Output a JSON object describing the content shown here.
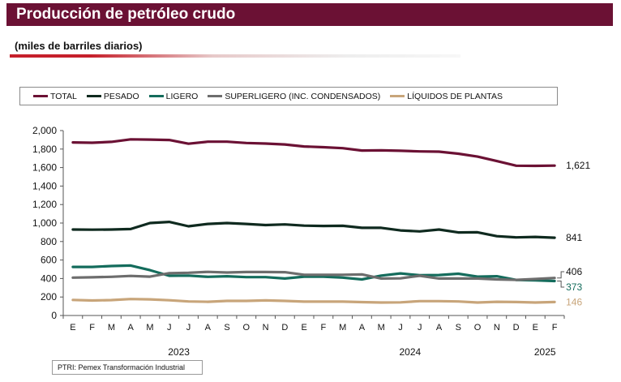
{
  "title": "Producción de petróleo crudo",
  "subtitle": "(miles de barriles diarios)",
  "source": "PTRI: Pemex Transformación Industrial",
  "chart_data": {
    "type": "line",
    "x": [
      "E",
      "F",
      "M",
      "A",
      "M",
      "J",
      "J",
      "A",
      "S",
      "O",
      "N",
      "D",
      "E",
      "F",
      "M",
      "A",
      "M",
      "J",
      "J",
      "A",
      "S",
      "O",
      "N",
      "D",
      "E",
      "F"
    ],
    "year_labels": [
      {
        "label": "2023",
        "start_index": 0,
        "end_index": 11
      },
      {
        "label": "2024",
        "start_index": 12,
        "end_index": 23
      },
      {
        "label": "2025",
        "start_index": 24,
        "end_index": 25
      }
    ],
    "ylim": [
      0,
      2000
    ],
    "yticks": [
      "0",
      "200",
      "400",
      "600",
      "800",
      "1,000",
      "1,200",
      "1,400",
      "1,600",
      "1,800",
      "2,000"
    ],
    "ytick_values": [
      0,
      200,
      400,
      600,
      800,
      1000,
      1200,
      1400,
      1600,
      1800,
      2000
    ],
    "grid": false,
    "legend_position": "top",
    "series": [
      {
        "name": "TOTAL",
        "color": "#6b1134",
        "end_label": "1,621",
        "values": [
          1872,
          1868,
          1878,
          1905,
          1903,
          1898,
          1858,
          1880,
          1880,
          1866,
          1860,
          1850,
          1828,
          1820,
          1810,
          1784,
          1786,
          1782,
          1775,
          1772,
          1750,
          1718,
          1670,
          1620,
          1618,
          1621
        ]
      },
      {
        "name": "PESADO",
        "color": "#0f2a1f",
        "end_label": "841",
        "values": [
          930,
          928,
          930,
          935,
          1000,
          1012,
          965,
          990,
          1000,
          990,
          978,
          985,
          972,
          968,
          970,
          948,
          948,
          920,
          910,
          930,
          898,
          900,
          858,
          845,
          850,
          841
        ]
      },
      {
        "name": "LIGERO",
        "color": "#146c5c",
        "end_label": "373",
        "values": [
          525,
          525,
          535,
          540,
          490,
          430,
          432,
          418,
          425,
          415,
          415,
          400,
          420,
          420,
          410,
          390,
          432,
          455,
          435,
          438,
          452,
          420,
          425,
          385,
          380,
          373
        ]
      },
      {
        "name": "SUPERLIGERO (INC. CONDENSADOS)",
        "color": "#6d6d6d",
        "end_label": "406",
        "values": [
          410,
          413,
          418,
          428,
          420,
          458,
          462,
          472,
          465,
          470,
          470,
          468,
          440,
          440,
          440,
          445,
          400,
          402,
          430,
          400,
          400,
          400,
          390,
          385,
          395,
          406
        ]
      },
      {
        "name": "LÍQUIDOS DE PLANTAS",
        "color": "#c8a57a",
        "end_label": "146",
        "values": [
          168,
          162,
          167,
          178,
          175,
          165,
          152,
          148,
          158,
          158,
          163,
          158,
          150,
          150,
          150,
          145,
          140,
          142,
          155,
          155,
          152,
          140,
          148,
          146,
          140,
          146
        ]
      }
    ]
  }
}
